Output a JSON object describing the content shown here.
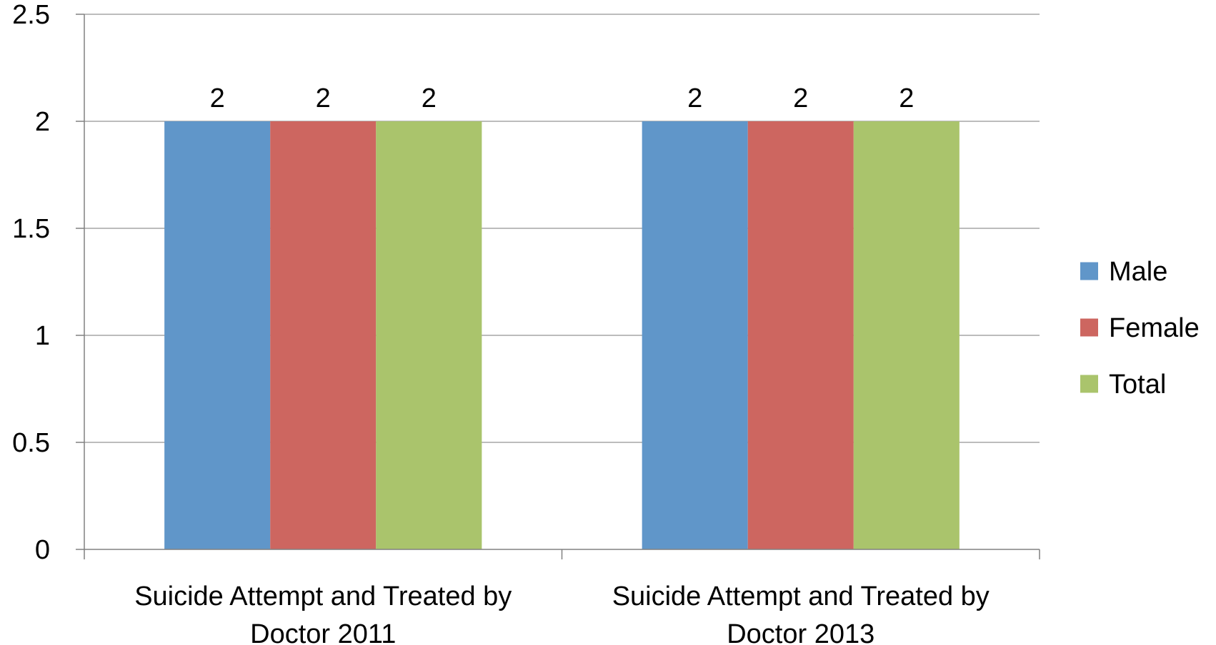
{
  "chart_data": {
    "type": "bar",
    "title": "",
    "xlabel": "",
    "ylabel": "",
    "ylim": [
      0,
      2.5
    ],
    "yticks": [
      "0",
      "0.5",
      "1",
      "1.5",
      "2",
      "2.5"
    ],
    "ytick_values": [
      0,
      0.5,
      1,
      1.5,
      2,
      2.5
    ],
    "grid": true,
    "legend_position": "right",
    "categories": [
      [
        "Suicide Attempt and Treated by",
        "Doctor 2011"
      ],
      [
        "Suicide Attempt and Treated by",
        "Doctor 2013"
      ]
    ],
    "series": [
      {
        "name": "Male",
        "color": "#6096C9",
        "values": [
          2,
          2
        ],
        "labels": [
          "2",
          "2"
        ]
      },
      {
        "name": "Female",
        "color": "#CD6660",
        "values": [
          2,
          2
        ],
        "labels": [
          "2",
          "2"
        ]
      },
      {
        "name": "Total",
        "color": "#AAC46C",
        "values": [
          2,
          2
        ],
        "labels": [
          "2",
          "2"
        ]
      }
    ],
    "colors": {
      "grid": "#A6A6A6",
      "axis": "#808080"
    }
  }
}
